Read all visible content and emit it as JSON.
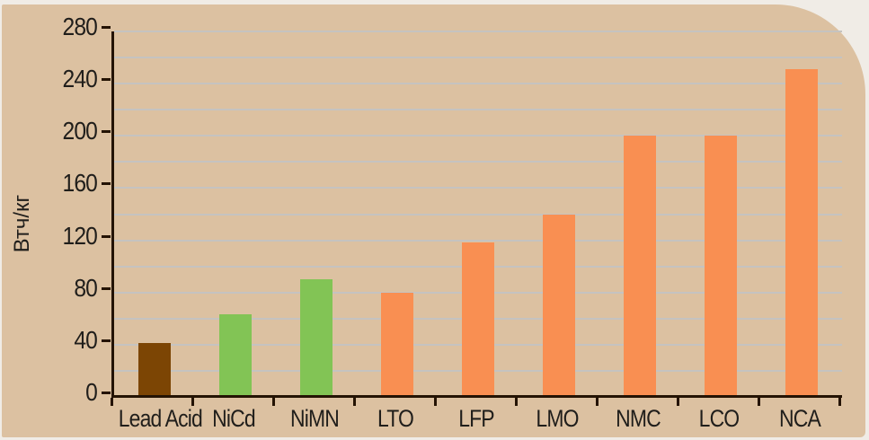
{
  "page": {
    "background_color": "#f0ece6",
    "panel_color": "#dcc1a1"
  },
  "chart_data": {
    "type": "bar",
    "categories": [
      "Lead Acid",
      "NiCd",
      "NiMN",
      "LTO",
      "LFP",
      "LMO",
      "NMC",
      "LCO",
      "NCA"
    ],
    "values": [
      41,
      63,
      90,
      80,
      118,
      140,
      200,
      200,
      251
    ],
    "bar_colors": [
      "#7c4504",
      "#82c455",
      "#82c455",
      "#f98f52",
      "#f98f52",
      "#f98f52",
      "#f98f52",
      "#f98f52",
      "#f98f52"
    ],
    "ylabel": "Втч/кг",
    "xlabel": "",
    "ylim": [
      0,
      280
    ],
    "yticks": [
      0,
      40,
      80,
      120,
      160,
      200,
      240,
      280
    ],
    "grid_step": 20,
    "grid": true,
    "legend": false,
    "colors": {
      "grid": "#c5c3c0",
      "axis": "#241303",
      "text": "#201e1b"
    }
  }
}
